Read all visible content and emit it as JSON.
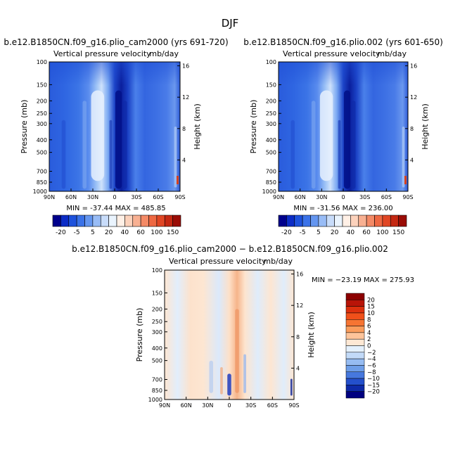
{
  "figure_title": "DJF",
  "chart_data": [
    {
      "type": "heatmap",
      "title": "b.e12.B1850CN.f09_g16.plio_cam2000 (yrs 691-720)",
      "subtitle": "Vertical pressure velocity",
      "units": "mb/day",
      "xlabel": "",
      "ylabel": "Pressure (mb)",
      "y2label": "Height (km)",
      "x_ticks": [
        "90N",
        "60N",
        "30N",
        "0",
        "30S",
        "60S",
        "90S"
      ],
      "x_range": [
        90,
        -90
      ],
      "y_ticks": [
        100,
        150,
        200,
        250,
        300,
        400,
        500,
        700,
        850,
        1000
      ],
      "y_range": [
        100,
        1000
      ],
      "y_scale": "log",
      "y2_ticks": [
        4,
        8,
        12,
        16
      ],
      "stats": "MIN = -37.44   MAX = 485.85",
      "grid": false,
      "colorbar": {
        "labels": [
          "-20",
          "-5",
          "5",
          "20",
          "40",
          "60",
          "100",
          "150"
        ],
        "colors": [
          "#00008c",
          "#0c2cc6",
          "#1e52dc",
          "#3a72e8",
          "#6496f0",
          "#98bcf6",
          "#c8dcfa",
          "#eaf4fe",
          "#fff0e6",
          "#fcd2bc",
          "#f8b092",
          "#f48a66",
          "#ee6842",
          "#e04624",
          "#c42812",
          "#9a0c06"
        ]
      }
    },
    {
      "type": "heatmap",
      "title": "b.e12.B1850CN.f09_g16.plio.002 (yrs 601-650)",
      "subtitle": "Vertical pressure velocity",
      "units": "mb/day",
      "xlabel": "",
      "ylabel": "Pressure (mb)",
      "y2label": "Height (km)",
      "x_ticks": [
        "90N",
        "60N",
        "30N",
        "0",
        "30S",
        "60S",
        "90S"
      ],
      "x_range": [
        90,
        -90
      ],
      "y_ticks": [
        100,
        150,
        200,
        250,
        300,
        400,
        500,
        700,
        850,
        1000
      ],
      "y_range": [
        100,
        1000
      ],
      "y_scale": "log",
      "y2_ticks": [
        4,
        8,
        12,
        16
      ],
      "stats": "MIN = -31.56   MAX = 236.00",
      "grid": false,
      "colorbar": {
        "labels": [
          "-20",
          "-5",
          "5",
          "20",
          "40",
          "60",
          "100",
          "150"
        ],
        "colors": [
          "#00008c",
          "#0c2cc6",
          "#1e52dc",
          "#3a72e8",
          "#6496f0",
          "#98bcf6",
          "#c8dcfa",
          "#eaf4fe",
          "#fff0e6",
          "#fcd2bc",
          "#f8b092",
          "#f48a66",
          "#ee6842",
          "#e04624",
          "#c42812",
          "#9a0c06"
        ]
      }
    },
    {
      "type": "heatmap",
      "title": "b.e12.B1850CN.f09_g16.plio_cam2000 − b.e12.B1850CN.f09_g16.plio.002",
      "subtitle": "Vertical pressure velocity",
      "units": "mb/day",
      "xlabel": "",
      "ylabel": "Pressure (mb)",
      "y2label": "Height (km)",
      "x_ticks": [
        "90N",
        "60N",
        "30N",
        "0",
        "30S",
        "60S",
        "90S"
      ],
      "x_range": [
        90,
        -90
      ],
      "y_ticks": [
        100,
        150,
        200,
        250,
        300,
        400,
        500,
        700,
        850,
        1000
      ],
      "y_range": [
        100,
        1000
      ],
      "y_scale": "log",
      "y2_ticks": [
        4,
        8,
        12,
        16
      ],
      "stats": "MIN = −23.19   MAX = 275.93",
      "grid": false,
      "colorbar": {
        "labels": [
          "20",
          "15",
          "10",
          "8",
          "6",
          "4",
          "2",
          "0",
          "−2",
          "−4",
          "−6",
          "−8",
          "−10",
          "−15",
          "−20"
        ],
        "colors": [
          "#8c0000",
          "#b81408",
          "#dc300e",
          "#f0501a",
          "#f67432",
          "#fa9c5c",
          "#fdc49a",
          "#fee8d4",
          "#e4f0fc",
          "#c2daf8",
          "#96bcf2",
          "#6e9ee8",
          "#4678de",
          "#2450cc",
          "#0e2aa8",
          "#000080"
        ]
      }
    }
  ]
}
